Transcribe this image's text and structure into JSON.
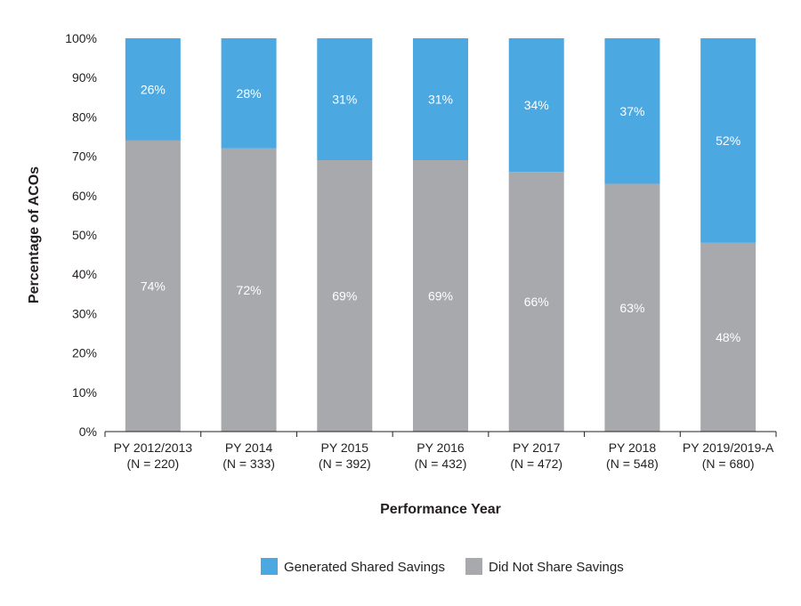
{
  "chart_data": {
    "type": "bar",
    "stacked": true,
    "categories": [
      "PY 2012/2013",
      "PY 2014",
      "PY 2015",
      "PY 2016",
      "PY 2017",
      "PY 2018",
      "PY 2019/2019-A"
    ],
    "category_sublabels": [
      "(N = 220)",
      "(N = 333)",
      "(N = 392)",
      "(N = 432)",
      "(N = 472)",
      "(N = 548)",
      "(N = 680)"
    ],
    "series": [
      {
        "name": "Did Not Share Savings",
        "color": "#a7a9ac",
        "values": [
          74,
          72,
          69,
          69,
          66,
          63,
          48
        ],
        "labels": [
          "74%",
          "72%",
          "69%",
          "69%",
          "66%",
          "63%",
          "48%"
        ]
      },
      {
        "name": "Generated Shared Savings",
        "color": "#4ba8e1",
        "values": [
          26,
          28,
          31,
          31,
          34,
          37,
          52
        ],
        "labels": [
          "26%",
          "28%",
          "31%",
          "31%",
          "34%",
          "37%",
          "52%"
        ]
      }
    ],
    "xlabel": "Performance Year",
    "ylabel": "Percentage of ACOs",
    "ylim": [
      0,
      100
    ],
    "yticks": [
      "0%",
      "10%",
      "20%",
      "30%",
      "40%",
      "50%",
      "60%",
      "70%",
      "80%",
      "90%",
      "100%"
    ],
    "legend": {
      "placement": "bottom",
      "items": [
        {
          "name": "Generated Shared Savings",
          "color": "#4ba8e1"
        },
        {
          "name": "Did Not Share Savings",
          "color": "#a7a9ac"
        }
      ]
    },
    "grid": false
  }
}
